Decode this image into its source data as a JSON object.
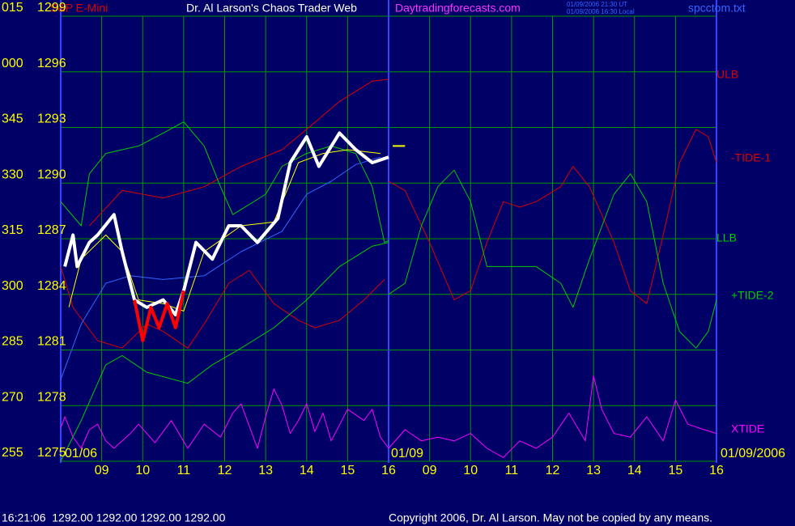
{
  "chart_data": {
    "type": "line",
    "title": "Dr. Al Larson's Chaos Trader Web",
    "subtitle": "S&P E-Mini",
    "site": "Daytradingforecasts.com",
    "timestamps": [
      "01/09/2006 21:30 UT",
      "01/09/2006 16:30 Local"
    ],
    "file": "spcctom.txt",
    "dates": [
      "01/06",
      "01/09",
      "01/09/2006"
    ],
    "angle_labels": [
      "255",
      "270",
      "285",
      "300",
      "315",
      "330",
      "345",
      "000",
      "015"
    ],
    "status": "16:21:06  1292.00 1292.00 1292.00 1292.00",
    "copyright": "Copyright 2006, Dr. Al Larson. May not be copied by any means.",
    "xlim": [
      0,
      16
    ],
    "xticks": [
      {
        "value": 1,
        "label": "09"
      },
      {
        "value": 2,
        "label": "10"
      },
      {
        "value": 3,
        "label": "11"
      },
      {
        "value": 4,
        "label": "12"
      },
      {
        "value": 5,
        "label": "13"
      },
      {
        "value": 6,
        "label": "14"
      },
      {
        "value": 7,
        "label": "15"
      },
      {
        "value": 8,
        "label": "16"
      },
      {
        "value": 9,
        "label": "09"
      },
      {
        "value": 10,
        "label": "10"
      },
      {
        "value": 11,
        "label": "11"
      },
      {
        "value": 12,
        "label": "12"
      },
      {
        "value": 13,
        "label": "13"
      },
      {
        "value": 14,
        "label": "14"
      },
      {
        "value": 15,
        "label": "15"
      },
      {
        "value": 16,
        "label": "16"
      }
    ],
    "ylim": [
      1275,
      1299
    ],
    "yticks": [
      1275,
      1278,
      1281,
      1284,
      1287,
      1290,
      1293,
      1296,
      1299
    ],
    "grid": true,
    "series": [
      {
        "name": "XTIDE",
        "color": "#ff00ff",
        "width": 1,
        "x": [
          0,
          0.1,
          0.3,
          0.5,
          0.7,
          0.9,
          1.1,
          1.3,
          1.5,
          1.7,
          1.9,
          2.3,
          2.7,
          3.1,
          3.5,
          3.9,
          4.2,
          4.4,
          4.8,
          5.0,
          5.2,
          5.4,
          5.6,
          5.8,
          6.0,
          6.2,
          6.4,
          6.6,
          7.0,
          7.4,
          7.6,
          7.8,
          8.0,
          8.4,
          8.8,
          9.2,
          9.6,
          10.0,
          10.4,
          10.8,
          11.2,
          11.6,
          12.0,
          12.4,
          12.8,
          13.0,
          13.2,
          13.5,
          13.9,
          14.3,
          14.7,
          15.0,
          15.3,
          15.7,
          16.0
        ],
        "values": [
          1276.8,
          1277.4,
          1276.3,
          1275.7,
          1276.7,
          1277.0,
          1276.1,
          1275.7,
          1276.1,
          1276.5,
          1277.0,
          1276.0,
          1277.2,
          1275.7,
          1277.0,
          1276.3,
          1277.6,
          1278.1,
          1275.7,
          1277.4,
          1278.9,
          1278.0,
          1276.5,
          1277.2,
          1278.1,
          1276.6,
          1277.6,
          1276.1,
          1277.8,
          1277.2,
          1277.8,
          1276.3,
          1275.7,
          1276.7,
          1276.1,
          1276.3,
          1276.1,
          1276.5,
          1275.7,
          1275.2,
          1276.1,
          1275.7,
          1276.3,
          1277.6,
          1276.1,
          1279.6,
          1277.8,
          1276.5,
          1276.3,
          1277.4,
          1276.1,
          1278.3,
          1277.0,
          1276.7,
          1276.5
        ]
      },
      {
        "name": "ULB",
        "color": "#dd0000",
        "width": 1,
        "x": [
          0.7,
          1.5,
          2.5,
          3.5,
          4.4,
          5.4,
          6.0,
          6.8,
          7.6,
          8.0
        ],
        "values": [
          1287.7,
          1289.6,
          1289.2,
          1289.8,
          1290.9,
          1291.8,
          1292.9,
          1294.4,
          1295.5,
          1295.6
        ]
      },
      {
        "color": "#dd0000",
        "width": 1,
        "x": [
          0,
          0.3,
          0.9,
          1.5,
          2.1,
          2.5,
          3.1,
          3.5,
          4.1,
          4.6,
          5.2,
          5.8,
          6.2,
          6.8,
          7.4,
          7.9
        ],
        "values": [
          1285.5,
          1283.3,
          1281.5,
          1281.1,
          1282.4,
          1282.0,
          1281.1,
          1282.4,
          1284.6,
          1285.3,
          1283.5,
          1282.6,
          1282.2,
          1282.6,
          1283.7,
          1284.8
        ]
      },
      {
        "name": "-TIDE-1",
        "color": "#dd0000",
        "width": 1,
        "x": [
          8.0,
          8.4,
          9.0,
          9.6,
          10.0,
          10.4,
          10.8,
          11.2,
          11.6,
          12.2,
          12.5,
          12.9,
          13.5,
          13.9,
          14.3,
          14.7,
          15.1,
          15.5,
          15.8,
          16.0
        ],
        "values": [
          1290.1,
          1289.6,
          1286.8,
          1283.7,
          1284.2,
          1286.8,
          1289.0,
          1288.7,
          1289.0,
          1289.8,
          1290.9,
          1289.8,
          1286.8,
          1284.2,
          1283.5,
          1287.2,
          1291.1,
          1292.9,
          1292.5,
          1291.1
        ]
      },
      {
        "color": "#00cc00",
        "width": 1,
        "x": [
          0,
          0.5,
          0.7,
          1.1,
          1.9,
          2.5,
          3.0,
          3.5,
          3.9,
          4.2,
          5.0,
          5.4,
          6.0,
          6.6,
          7.2,
          7.6,
          7.9,
          8.0
        ],
        "values": [
          1289.0,
          1287.7,
          1290.5,
          1291.6,
          1292.0,
          1292.7,
          1293.3,
          1292.0,
          1289.8,
          1288.3,
          1289.4,
          1290.9,
          1291.6,
          1292.0,
          1291.6,
          1289.8,
          1286.8,
          1286.9
        ]
      },
      {
        "name": "+TIDE-2",
        "color": "#00cc00",
        "width": 1,
        "x": [
          8.0,
          8.4,
          8.8,
          9.2,
          9.6,
          10.0,
          10.4,
          10.8,
          11.6,
          12.2,
          12.5,
          12.9,
          13.5,
          13.9,
          14.3,
          14.7,
          15.1,
          15.5,
          15.8,
          16.0
        ],
        "values": [
          1284.0,
          1284.6,
          1287.7,
          1289.8,
          1290.7,
          1289.0,
          1285.5,
          1285.5,
          1285.5,
          1284.6,
          1283.3,
          1285.9,
          1289.4,
          1290.5,
          1289.0,
          1284.6,
          1282.0,
          1281.1,
          1282.0,
          1283.7
        ]
      },
      {
        "name": "LLB",
        "color": "#00cc00",
        "width": 1,
        "x": [
          0,
          0.5,
          1.1,
          1.5,
          2.1,
          3.1,
          3.7,
          4.4,
          5.2,
          6.0,
          6.8,
          7.6,
          8.0
        ],
        "values": [
          1275.0,
          1277.2,
          1280.2,
          1280.7,
          1279.8,
          1279.2,
          1280.2,
          1281.1,
          1282.2,
          1283.7,
          1285.5,
          1286.6,
          1286.8
        ]
      },
      {
        "color": "#3366ff",
        "width": 1,
        "x": [
          0,
          0.5,
          1.1,
          1.7,
          2.5,
          3.5,
          4.4,
          5.4,
          6.0,
          6.6,
          7.2,
          7.8
        ],
        "values": [
          1279.4,
          1282.4,
          1284.6,
          1285.0,
          1284.8,
          1285.0,
          1286.3,
          1287.4,
          1289.4,
          1290.1,
          1291.0,
          1291.4
        ]
      },
      {
        "color": "#ffff00",
        "width": 1,
        "x": [
          0.2,
          0.5,
          1.1,
          1.5,
          1.9,
          2.5,
          3.0,
          3.5,
          4.4,
          5.2,
          5.8,
          6.4,
          7.0,
          7.8
        ],
        "values": [
          1283.3,
          1285.9,
          1287.2,
          1286.3,
          1283.7,
          1283.5,
          1283.1,
          1286.3,
          1287.7,
          1287.9,
          1291.1,
          1291.6,
          1291.8,
          1291.6
        ]
      },
      {
        "color": "#ffffff",
        "width": 4,
        "x": [
          0.1,
          0.3,
          0.4,
          0.7,
          0.9,
          1.3,
          1.5,
          1.8,
          2.1,
          2.5,
          2.8,
          3.0,
          3.3,
          3.7,
          4.1,
          4.4,
          4.8,
          5.3,
          5.6,
          6.0,
          6.3,
          6.8,
          7.2,
          7.6,
          8.0
        ],
        "values": [
          1285.5,
          1287.2,
          1285.5,
          1286.8,
          1287.2,
          1288.3,
          1286.3,
          1283.7,
          1283.3,
          1283.7,
          1282.9,
          1284.2,
          1286.8,
          1285.9,
          1287.7,
          1287.7,
          1286.8,
          1288.1,
          1291.1,
          1292.5,
          1290.9,
          1292.7,
          1291.8,
          1291.1,
          1291.4
        ]
      },
      {
        "color": "#ff0000",
        "width": 4,
        "x": [
          1.8,
          2.0,
          2.2,
          2.4,
          2.6,
          2.8,
          3.0
        ],
        "values": [
          1283.7,
          1281.5,
          1283.3,
          1282.2,
          1283.5,
          1282.2,
          1284.2
        ]
      },
      {
        "color": "#ffff00",
        "width": 2,
        "x": [
          8.1,
          8.4
        ],
        "values": [
          1292.0,
          1292.0
        ]
      }
    ]
  }
}
